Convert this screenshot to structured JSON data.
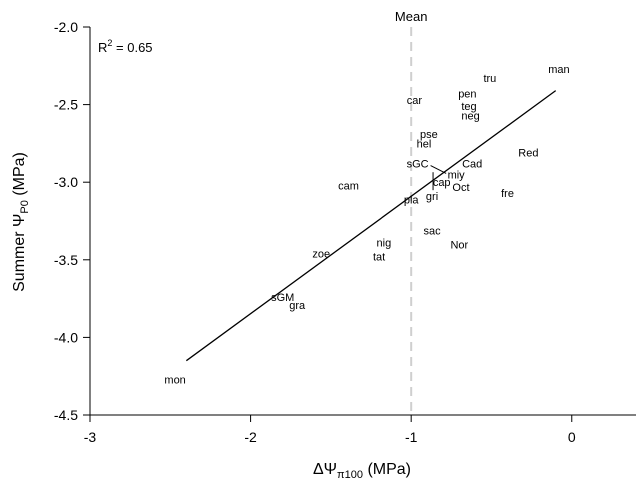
{
  "chart_data": {
    "type": "scatter",
    "xlabel_symbol": "ΔΨ",
    "xlabel_sub": "π100",
    "xlabel_unit": " (MPa)",
    "ylabel_prefix": "Summer Ψ",
    "ylabel_sub": "P0",
    "ylabel_unit": " (MPa)",
    "xlim": [
      -3,
      0.4
    ],
    "ylim": [
      -4.5,
      -2.0
    ],
    "xticks": [
      {
        "value": -3,
        "label": "-3"
      },
      {
        "value": -2,
        "label": "-2"
      },
      {
        "value": -1,
        "label": "-1"
      },
      {
        "value": 0,
        "label": "0"
      }
    ],
    "yticks": [
      {
        "value": -4.5,
        "label": "-4.5"
      },
      {
        "value": -4.0,
        "label": "-4.0"
      },
      {
        "value": -3.5,
        "label": "-3.5"
      },
      {
        "value": -3.0,
        "label": "-3.0"
      },
      {
        "value": -2.5,
        "label": "-2.5"
      },
      {
        "value": -2.0,
        "label": "-2.0"
      }
    ],
    "mean_line": {
      "x": -1,
      "label": "Mean"
    },
    "r_squared": {
      "prefix": "R",
      "sup": "2",
      "suffix": " = 0.65"
    },
    "regression": {
      "x1": -2.4,
      "y1": -4.15,
      "x2": -0.1,
      "y2": -2.41
    },
    "grid": false,
    "points": [
      {
        "label": "man",
        "x": -0.08,
        "y": -2.27
      },
      {
        "label": "tru",
        "x": -0.51,
        "y": -2.33
      },
      {
        "label": "car",
        "x": -0.98,
        "y": -2.47
      },
      {
        "label": "pen",
        "x": -0.65,
        "y": -2.43
      },
      {
        "label": "teg",
        "x": -0.64,
        "y": -2.51
      },
      {
        "label": "neg",
        "x": -0.63,
        "y": -2.57
      },
      {
        "label": "pse",
        "x": -0.89,
        "y": -2.69
      },
      {
        "label": "hel",
        "x": -0.92,
        "y": -2.75
      },
      {
        "label": "Red",
        "x": -0.27,
        "y": -2.81
      },
      {
        "label": "sGC",
        "x": -0.96,
        "y": -2.88
      },
      {
        "label": "Cad",
        "x": -0.62,
        "y": -2.88
      },
      {
        "label": "miy",
        "x": -0.72,
        "y": -2.95
      },
      {
        "label": "cap",
        "x": -0.81,
        "y": -3.0
      },
      {
        "label": "Oct",
        "x": -0.69,
        "y": -3.03
      },
      {
        "label": "cam",
        "x": -1.39,
        "y": -3.02
      },
      {
        "label": "fre",
        "x": -0.4,
        "y": -3.07
      },
      {
        "label": "gri",
        "x": -0.87,
        "y": -3.09
      },
      {
        "label": "pla",
        "x": -1.0,
        "y": -3.11
      },
      {
        "label": "sac",
        "x": -0.87,
        "y": -3.31
      },
      {
        "label": "nig",
        "x": -1.17,
        "y": -3.39
      },
      {
        "label": "Nor",
        "x": -0.7,
        "y": -3.4
      },
      {
        "label": "zoe",
        "x": -1.56,
        "y": -3.46
      },
      {
        "label": "tat",
        "x": -1.2,
        "y": -3.48
      },
      {
        "label": "sGM",
        "x": -1.8,
        "y": -3.74
      },
      {
        "label": "gra",
        "x": -1.71,
        "y": -3.79
      },
      {
        "label": "mon",
        "x": -2.47,
        "y": -4.27
      }
    ]
  }
}
